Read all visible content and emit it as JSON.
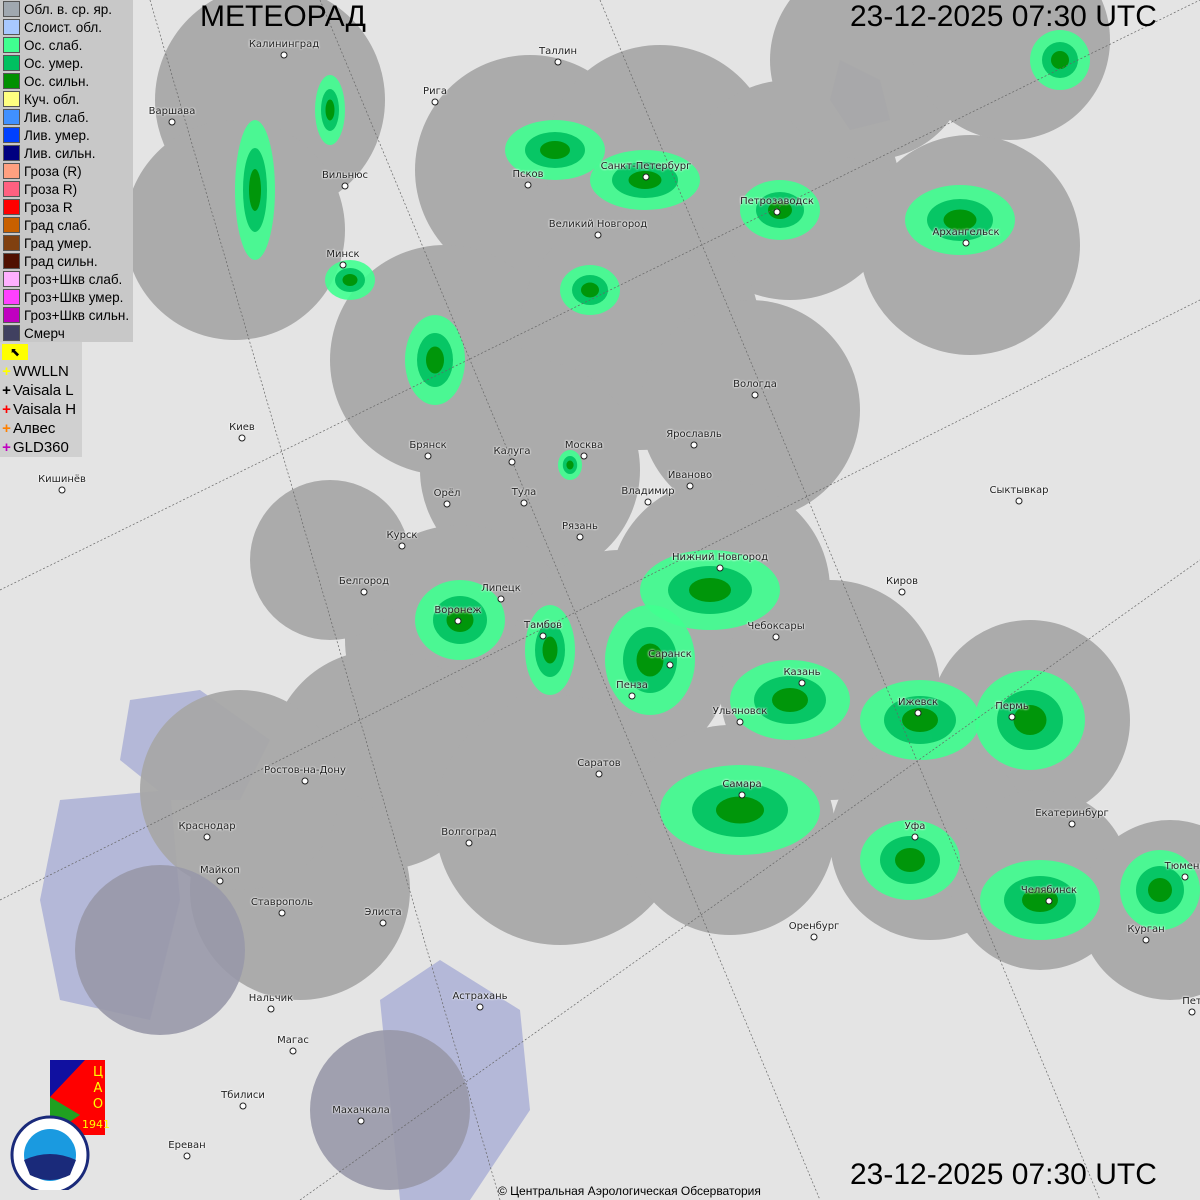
{
  "header": {
    "title": "МЕТЕОРАД",
    "timestamp_top": "23-12-2025  07:30 UTC",
    "timestamp_bottom": "23-12-2025  07:30 UTC"
  },
  "legend": {
    "items": [
      {
        "label": "Обл. в. ср. яр.",
        "color": "#a0a8b0"
      },
      {
        "label": "Слоист. обл.",
        "color": "#a8c8ff"
      },
      {
        "label": "Ос. слаб.",
        "color": "#40ff90"
      },
      {
        "label": "Ос. умер.",
        "color": "#00c060"
      },
      {
        "label": "Ос. сильн.",
        "color": "#009000"
      },
      {
        "label": "Куч. обл.",
        "color": "#ffff80"
      },
      {
        "label": "Лив. слаб.",
        "color": "#4090ff"
      },
      {
        "label": "Лив. умер.",
        "color": "#0040ff"
      },
      {
        "label": "Лив. сильн.",
        "color": "#000080"
      },
      {
        "label": "Гроза (R)",
        "color": "#ffa080"
      },
      {
        "label": "Гроза R)",
        "color": "#ff6080"
      },
      {
        "label": "Гроза R",
        "color": "#ff0000"
      },
      {
        "label": "Град слаб.",
        "color": "#c86000"
      },
      {
        "label": "Град умер.",
        "color": "#804010"
      },
      {
        "label": "Град сильн.",
        "color": "#501000"
      },
      {
        "label": "Гроз+Шкв слаб.",
        "color": "#ffb0ff"
      },
      {
        "label": "Гроз+Шкв умер.",
        "color": "#ff40ff"
      },
      {
        "label": "Гроз+Шкв сильн.",
        "color": "#c000c0"
      },
      {
        "label": "Смерч",
        "color": "#404060"
      }
    ]
  },
  "lightning": {
    "toggle_icon": "flag-arrow-icon",
    "items": [
      {
        "label": "WWLLN",
        "color": "#ffff00"
      },
      {
        "label": "Vaisala L",
        "color": "#000000"
      },
      {
        "label": "Vaisala H",
        "color": "#ff0000"
      },
      {
        "label": "Алвес",
        "color": "#ff8000"
      },
      {
        "label": "GLD360",
        "color": "#c000c0"
      }
    ]
  },
  "cities": [
    "Калининград",
    "Таллин",
    "Рига",
    "Варшава",
    "Псков",
    "Санкт-Петербург",
    "Петрозаводск",
    "Архангельск",
    "Вильнюс",
    "Великий Новгород",
    "Минск",
    "Вологда",
    "Киев",
    "Брянск",
    "Калуга",
    "Москва",
    "Ярославль",
    "Иваново",
    "Кишинёв",
    "Орёл",
    "Тула",
    "Владимир",
    "Сыктывкар",
    "Рязань",
    "Курск",
    "Нижний Новгород",
    "Белгород",
    "Липецк",
    "Киров",
    "Воронеж",
    "Тамбов",
    "Чебоксары",
    "Саранск",
    "Казань",
    "Пенза",
    "Ижевск",
    "Пермь",
    "Ульяновск",
    "Ростов-на-Дону",
    "Саратов",
    "Самара",
    "Екатеринбург",
    "Краснодар",
    "Уфа",
    "Волгоград",
    "Майкоп",
    "Тюмень",
    "Челябинск",
    "Ставрополь",
    "Элиста",
    "Оренбург",
    "Курган",
    "Нальчик",
    "Астрахань",
    "Магас",
    "Тбилиси",
    "Махачкала",
    "Ереван",
    "Пет"
  ],
  "logos": {
    "cao": "ЦАО 1941",
    "roshydromet": "РОСГИДРОМЕТ ROSHYDROMET"
  },
  "footer": {
    "copyright": "© Центральная Аэрологическая Обсерватория"
  },
  "colors": {
    "radar_coverage": "#a8a8a8",
    "water": "#b4b8d8",
    "land": "#e4e4e4"
  }
}
